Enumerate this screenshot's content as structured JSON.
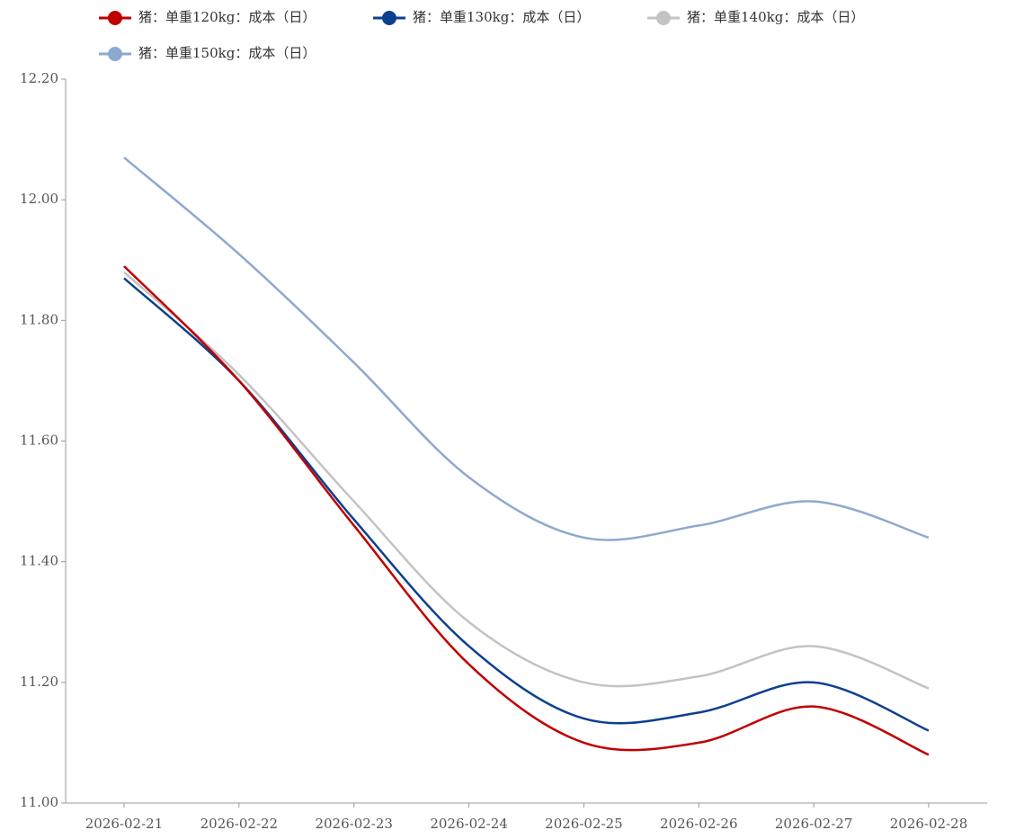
{
  "chart_data": {
    "type": "line",
    "categories": [
      "2026-02-21",
      "2026-02-22",
      "2026-02-23",
      "2026-02-24",
      "2026-02-25",
      "2026-02-26",
      "2026-02-27",
      "2026-02-28"
    ],
    "series": [
      {
        "name": "猪：单重120kg：成本（日）",
        "color": "#c00000",
        "values": [
          11.89,
          11.7,
          11.46,
          11.23,
          11.1,
          11.1,
          11.16,
          11.08
        ]
      },
      {
        "name": "猪：单重130kg：成本（日）",
        "color": "#0d3f8f",
        "values": [
          11.87,
          11.7,
          11.47,
          11.26,
          11.14,
          11.15,
          11.2,
          11.12
        ]
      },
      {
        "name": "猪：单重140kg：成本（日）",
        "color": "#c3c3c3",
        "values": [
          11.88,
          11.71,
          11.5,
          11.3,
          11.2,
          11.21,
          11.26,
          11.19
        ]
      },
      {
        "name": "猪：单重150kg：成本（日）",
        "color": "#8ea9d0",
        "values": [
          12.07,
          11.91,
          11.73,
          11.54,
          11.44,
          11.46,
          11.5,
          11.44
        ]
      }
    ],
    "ylim": [
      11.0,
      12.2
    ],
    "yticks": [
      {
        "value": 11.0,
        "label": "11.00"
      },
      {
        "value": 11.2,
        "label": "11.20"
      },
      {
        "value": 11.4,
        "label": "11.40"
      },
      {
        "value": 11.6,
        "label": "11.60"
      },
      {
        "value": 11.8,
        "label": "11.80"
      },
      {
        "value": 12.0,
        "label": "12.00"
      },
      {
        "value": 12.2,
        "label": "12.20"
      }
    ],
    "grid": false,
    "legend": "top"
  }
}
